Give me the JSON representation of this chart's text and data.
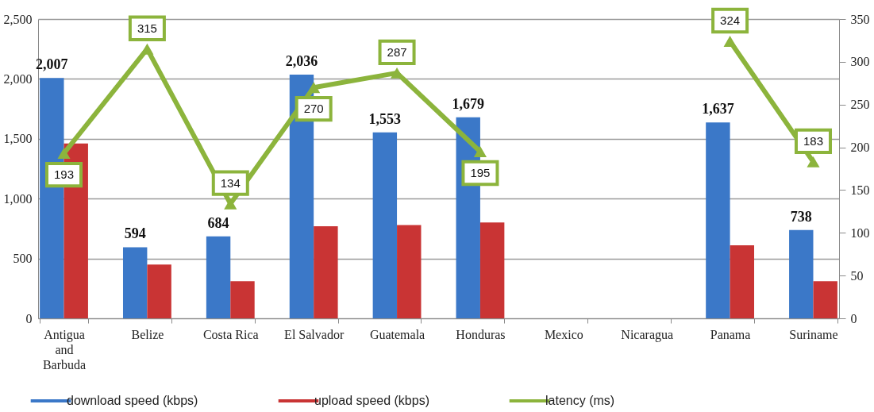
{
  "chart_data": {
    "type": "bar",
    "categories": [
      "Antigua and Barbuda",
      "Belize",
      "Costa Rica",
      "El Salvador",
      "Guatemala",
      "Honduras",
      "Mexico",
      "Nicaragua",
      "Panama",
      "Suriname"
    ],
    "series": [
      {
        "name": "download speed (kbps)",
        "color": "#3b78c8",
        "values": [
          2007,
          594,
          684,
          2036,
          1553,
          1679,
          null,
          null,
          1637,
          738
        ],
        "value_labels": [
          "2,007",
          "594",
          "684",
          "2,036",
          "1,553",
          "1,679",
          null,
          null,
          "1,637",
          "738"
        ]
      },
      {
        "name": "upload speed (kbps)",
        "color": "#c93434",
        "values": [
          1460,
          450,
          310,
          770,
          780,
          800,
          null,
          null,
          610,
          310
        ]
      },
      {
        "name": "latency (ms)",
        "type": "line",
        "axis": "y2",
        "color": "#8cb43c",
        "values": [
          193,
          315,
          134,
          270,
          287,
          195,
          null,
          null,
          324,
          183
        ],
        "value_labels": [
          "193",
          "315",
          "134",
          "270",
          "287",
          "195",
          null,
          null,
          "324",
          "183"
        ]
      }
    ],
    "ylim": [
      0,
      2500
    ],
    "yticks": [
      0,
      500,
      {
        "value": 1000,
        "label": "1,000"
      },
      {
        "value": 1500,
        "label": "1,500"
      },
      {
        "value": 2000,
        "label": "2,000"
      },
      {
        "value": 2500,
        "label": "2,500"
      }
    ],
    "y2lim": [
      0,
      350
    ],
    "y2ticks": [
      0,
      50,
      100,
      150,
      200,
      250,
      300,
      350
    ],
    "grid": "y",
    "legend": "bottom",
    "marker": "triangle"
  }
}
